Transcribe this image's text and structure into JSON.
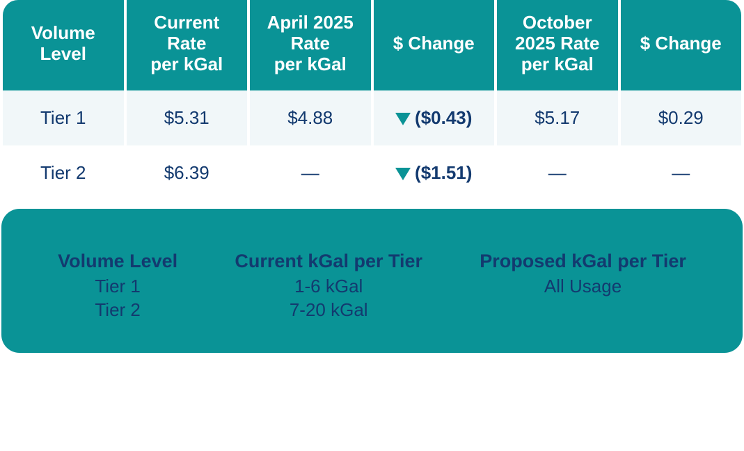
{
  "table": {
    "header_bg": "#0a9396",
    "header_fg": "#ffffff",
    "body_fg": "#133a6f",
    "alt_row_bg": "#f1f7f9",
    "columns": [
      "Volume Level",
      "Current Rate per kGal",
      "April 2025 Rate per kGal",
      "$ Change",
      "October 2025 Rate per kGal",
      "$ Change"
    ],
    "rows": [
      {
        "level": "Tier 1",
        "current": "$5.31",
        "april": "$4.88",
        "change1": "($0.43)",
        "change1_dir": "down",
        "october": "$5.17",
        "change2": "$0.29",
        "change2_dir": "none",
        "alt": true
      },
      {
        "level": "Tier 2",
        "current": "$6.39",
        "april": "—",
        "change1": "($1.51)",
        "change1_dir": "down",
        "october": "—",
        "change2": "—",
        "change2_dir": "none",
        "alt": false
      }
    ]
  },
  "legend": {
    "bg": "#0a9396",
    "fg": "#133a6f",
    "cols": [
      {
        "title": "Volume Level",
        "values": [
          "Tier 1",
          "Tier 2"
        ]
      },
      {
        "title": "Current kGal per Tier",
        "values": [
          "1-6 kGal",
          "7-20 kGal"
        ]
      },
      {
        "title": "Proposed kGal per Tier",
        "values": [
          "All Usage"
        ]
      }
    ]
  }
}
